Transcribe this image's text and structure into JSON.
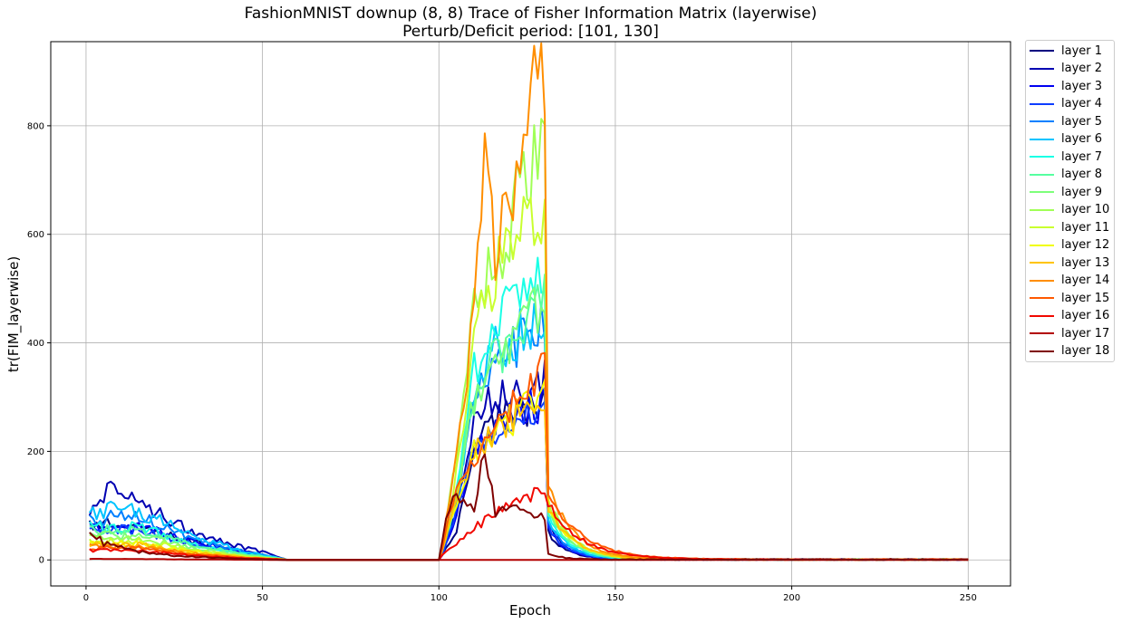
{
  "chart_data": {
    "type": "line",
    "title": "FashionMNIST downup (8, 8) Trace of Fisher Information Matrix (layerwise)",
    "subtitle": "Perturb/Deficit period: [101, 130]",
    "xlabel": "Epoch",
    "ylabel": "tr(FIM_layerwise)",
    "xlim": [
      -10,
      262
    ],
    "ylim": [
      -48,
      955
    ],
    "xticks": [
      0,
      50,
      100,
      150,
      200,
      250
    ],
    "yticks": [
      0,
      200,
      400,
      600,
      800
    ],
    "grid": true,
    "legend_position": "outside-right",
    "series": [
      {
        "name": "layer 1",
        "color": "#00007f",
        "early": [
          [
            1,
            65
          ],
          [
            10,
            70
          ],
          [
            20,
            50
          ],
          [
            30,
            35
          ],
          [
            40,
            20
          ],
          [
            50,
            10
          ],
          [
            56,
            2
          ]
        ],
        "deficit": [
          [
            101,
            10
          ],
          [
            105,
            50
          ],
          [
            110,
            200
          ],
          [
            115,
            260
          ],
          [
            120,
            270
          ],
          [
            125,
            280
          ],
          [
            130,
            285
          ]
        ],
        "tail": 50,
        "decay": 0.82
      },
      {
        "name": "layer 2",
        "color": "#0000b2",
        "early": [
          [
            1,
            95
          ],
          [
            7,
            130
          ],
          [
            15,
            110
          ],
          [
            20,
            90
          ],
          [
            30,
            55
          ],
          [
            40,
            30
          ],
          [
            50,
            15
          ],
          [
            56,
            3
          ]
        ],
        "deficit": [
          [
            101,
            15
          ],
          [
            105,
            90
          ],
          [
            110,
            260
          ],
          [
            115,
            300
          ],
          [
            120,
            310
          ],
          [
            125,
            325
          ],
          [
            130,
            335
          ]
        ],
        "tail": 65,
        "decay": 0.82
      },
      {
        "name": "layer 3",
        "color": "#0000f1",
        "early": [
          [
            1,
            60
          ],
          [
            15,
            60
          ],
          [
            30,
            35
          ],
          [
            45,
            15
          ],
          [
            56,
            2
          ]
        ],
        "deficit": [
          [
            101,
            10
          ],
          [
            105,
            80
          ],
          [
            110,
            200
          ],
          [
            115,
            240
          ],
          [
            120,
            260
          ],
          [
            125,
            280
          ],
          [
            130,
            290
          ]
        ],
        "tail": 55,
        "decay": 0.83
      },
      {
        "name": "layer 4",
        "color": "#0d3dff",
        "early": [
          [
            1,
            55
          ],
          [
            15,
            55
          ],
          [
            30,
            30
          ],
          [
            45,
            12
          ],
          [
            56,
            2
          ]
        ],
        "deficit": [
          [
            101,
            10
          ],
          [
            105,
            90
          ],
          [
            110,
            210
          ],
          [
            115,
            230
          ],
          [
            120,
            250
          ],
          [
            125,
            270
          ],
          [
            130,
            280
          ]
        ],
        "tail": 60,
        "decay": 0.83
      },
      {
        "name": "layer 5",
        "color": "#0080ff",
        "early": [
          [
            1,
            75
          ],
          [
            15,
            80
          ],
          [
            30,
            40
          ],
          [
            45,
            15
          ],
          [
            56,
            2
          ]
        ],
        "deficit": [
          [
            101,
            20
          ],
          [
            105,
            100
          ],
          [
            110,
            300
          ],
          [
            115,
            360
          ],
          [
            120,
            380
          ],
          [
            125,
            420
          ],
          [
            130,
            440
          ]
        ],
        "tail": 70,
        "decay": 0.84
      },
      {
        "name": "layer 6",
        "color": "#00c4ff",
        "early": [
          [
            1,
            85
          ],
          [
            10,
            95
          ],
          [
            20,
            75
          ],
          [
            30,
            45
          ],
          [
            45,
            15
          ],
          [
            56,
            2
          ]
        ],
        "deficit": [
          [
            101,
            20
          ],
          [
            105,
            110
          ],
          [
            110,
            320
          ],
          [
            115,
            380
          ],
          [
            120,
            400
          ],
          [
            125,
            430
          ],
          [
            130,
            445
          ]
        ],
        "tail": 75,
        "decay": 0.84
      },
      {
        "name": "layer 7",
        "color": "#1affe6",
        "early": [
          [
            1,
            60
          ],
          [
            15,
            60
          ],
          [
            30,
            30
          ],
          [
            45,
            10
          ],
          [
            56,
            2
          ]
        ],
        "deficit": [
          [
            101,
            20
          ],
          [
            105,
            120
          ],
          [
            110,
            350
          ],
          [
            115,
            420
          ],
          [
            120,
            460
          ],
          [
            125,
            520
          ],
          [
            130,
            560
          ]
        ],
        "tail": 85,
        "decay": 0.85
      },
      {
        "name": "layer 8",
        "color": "#56ffa0",
        "early": [
          [
            1,
            55
          ],
          [
            15,
            55
          ],
          [
            30,
            30
          ],
          [
            45,
            10
          ],
          [
            56,
            2
          ]
        ],
        "deficit": [
          [
            101,
            20
          ],
          [
            105,
            110
          ],
          [
            110,
            320
          ],
          [
            115,
            360
          ],
          [
            120,
            400
          ],
          [
            125,
            460
          ],
          [
            130,
            490
          ]
        ],
        "tail": 90,
        "decay": 0.85
      },
      {
        "name": "layer 9",
        "color": "#7dff7a",
        "early": [
          [
            1,
            45
          ],
          [
            15,
            45
          ],
          [
            30,
            22
          ],
          [
            45,
            8
          ],
          [
            56,
            1
          ]
        ],
        "deficit": [
          [
            101,
            20
          ],
          [
            105,
            120
          ],
          [
            110,
            300
          ],
          [
            115,
            350
          ],
          [
            120,
            380
          ],
          [
            125,
            440
          ],
          [
            130,
            480
          ]
        ],
        "tail": 95,
        "decay": 0.86
      },
      {
        "name": "layer 10",
        "color": "#a0ff56",
        "early": [
          [
            1,
            40
          ],
          [
            15,
            40
          ],
          [
            30,
            20
          ],
          [
            45,
            7
          ],
          [
            56,
            1
          ]
        ],
        "deficit": [
          [
            101,
            30
          ],
          [
            105,
            180
          ],
          [
            110,
            450
          ],
          [
            115,
            540
          ],
          [
            120,
            620
          ],
          [
            125,
            720
          ],
          [
            130,
            770
          ]
        ],
        "tail": 110,
        "decay": 0.86
      },
      {
        "name": "layer 11",
        "color": "#c9ff2f",
        "early": [
          [
            1,
            35
          ],
          [
            15,
            35
          ],
          [
            30,
            18
          ],
          [
            45,
            6
          ],
          [
            56,
            1
          ]
        ],
        "deficit": [
          [
            101,
            30
          ],
          [
            105,
            160
          ],
          [
            110,
            420
          ],
          [
            115,
            520
          ],
          [
            120,
            560
          ],
          [
            125,
            610
          ],
          [
            130,
            630
          ]
        ],
        "tail": 105,
        "decay": 0.86
      },
      {
        "name": "layer 12",
        "color": "#f1fc06",
        "early": [
          [
            1,
            30
          ],
          [
            15,
            30
          ],
          [
            30,
            15
          ],
          [
            45,
            5
          ],
          [
            56,
            1
          ]
        ],
        "deficit": [
          [
            101,
            20
          ],
          [
            105,
            110
          ],
          [
            110,
            200
          ],
          [
            115,
            220
          ],
          [
            120,
            250
          ],
          [
            125,
            280
          ],
          [
            130,
            300
          ]
        ],
        "tail": 90,
        "decay": 0.87
      },
      {
        "name": "layer 13",
        "color": "#ffc400",
        "early": [
          [
            1,
            28
          ],
          [
            15,
            28
          ],
          [
            30,
            14
          ],
          [
            45,
            5
          ],
          [
            56,
            1
          ]
        ],
        "deficit": [
          [
            101,
            20
          ],
          [
            105,
            110
          ],
          [
            110,
            200
          ],
          [
            115,
            230
          ],
          [
            120,
            260
          ],
          [
            125,
            280
          ],
          [
            130,
            300
          ]
        ],
        "tail": 95,
        "decay": 0.87
      },
      {
        "name": "layer 14",
        "color": "#ff8e00",
        "early": [
          [
            1,
            25
          ],
          [
            15,
            25
          ],
          [
            30,
            12
          ],
          [
            45,
            4
          ],
          [
            56,
            1
          ]
        ],
        "deficit": [
          [
            101,
            30
          ],
          [
            105,
            190
          ],
          [
            110,
            450
          ],
          [
            113,
            740
          ],
          [
            116,
            560
          ],
          [
            120,
            650
          ],
          [
            125,
            860
          ],
          [
            130,
            905
          ]
        ],
        "tail": 135,
        "decay": 0.87
      },
      {
        "name": "layer 15",
        "color": "#ff5900",
        "early": [
          [
            1,
            22
          ],
          [
            15,
            22
          ],
          [
            30,
            10
          ],
          [
            45,
            4
          ],
          [
            56,
            1
          ]
        ],
        "deficit": [
          [
            101,
            25
          ],
          [
            105,
            130
          ],
          [
            110,
            180
          ],
          [
            115,
            220
          ],
          [
            120,
            270
          ],
          [
            125,
            320
          ],
          [
            130,
            350
          ]
        ],
        "tail": 120,
        "decay": 0.9
      },
      {
        "name": "layer 16",
        "color": "#f10800",
        "early": [
          [
            1,
            18
          ],
          [
            15,
            18
          ],
          [
            30,
            8
          ],
          [
            45,
            3
          ],
          [
            56,
            1
          ]
        ],
        "deficit": [
          [
            101,
            10
          ],
          [
            105,
            30
          ],
          [
            110,
            60
          ],
          [
            115,
            80
          ],
          [
            120,
            100
          ],
          [
            125,
            115
          ],
          [
            130,
            125
          ]
        ],
        "tail": 100,
        "decay": 0.9
      },
      {
        "name": "layer 17",
        "color": "#b20000",
        "early": [
          [
            1,
            2
          ],
          [
            56,
            0
          ]
        ],
        "deficit": [
          [
            101,
            0
          ],
          [
            130,
            0
          ]
        ],
        "tail": 0,
        "decay": 0.9
      },
      {
        "name": "layer 18",
        "color": "#7f0000",
        "early": [
          [
            1,
            60
          ],
          [
            5,
            30
          ],
          [
            15,
            15
          ],
          [
            25,
            8
          ],
          [
            40,
            3
          ],
          [
            56,
            0
          ]
        ],
        "deficit": [
          [
            101,
            40
          ],
          [
            103,
            100
          ],
          [
            105,
            120
          ],
          [
            110,
            90
          ],
          [
            113,
            210
          ],
          [
            116,
            80
          ],
          [
            120,
            100
          ],
          [
            125,
            90
          ],
          [
            130,
            80
          ]
        ],
        "tail": 10,
        "decay": 0.8
      }
    ]
  }
}
